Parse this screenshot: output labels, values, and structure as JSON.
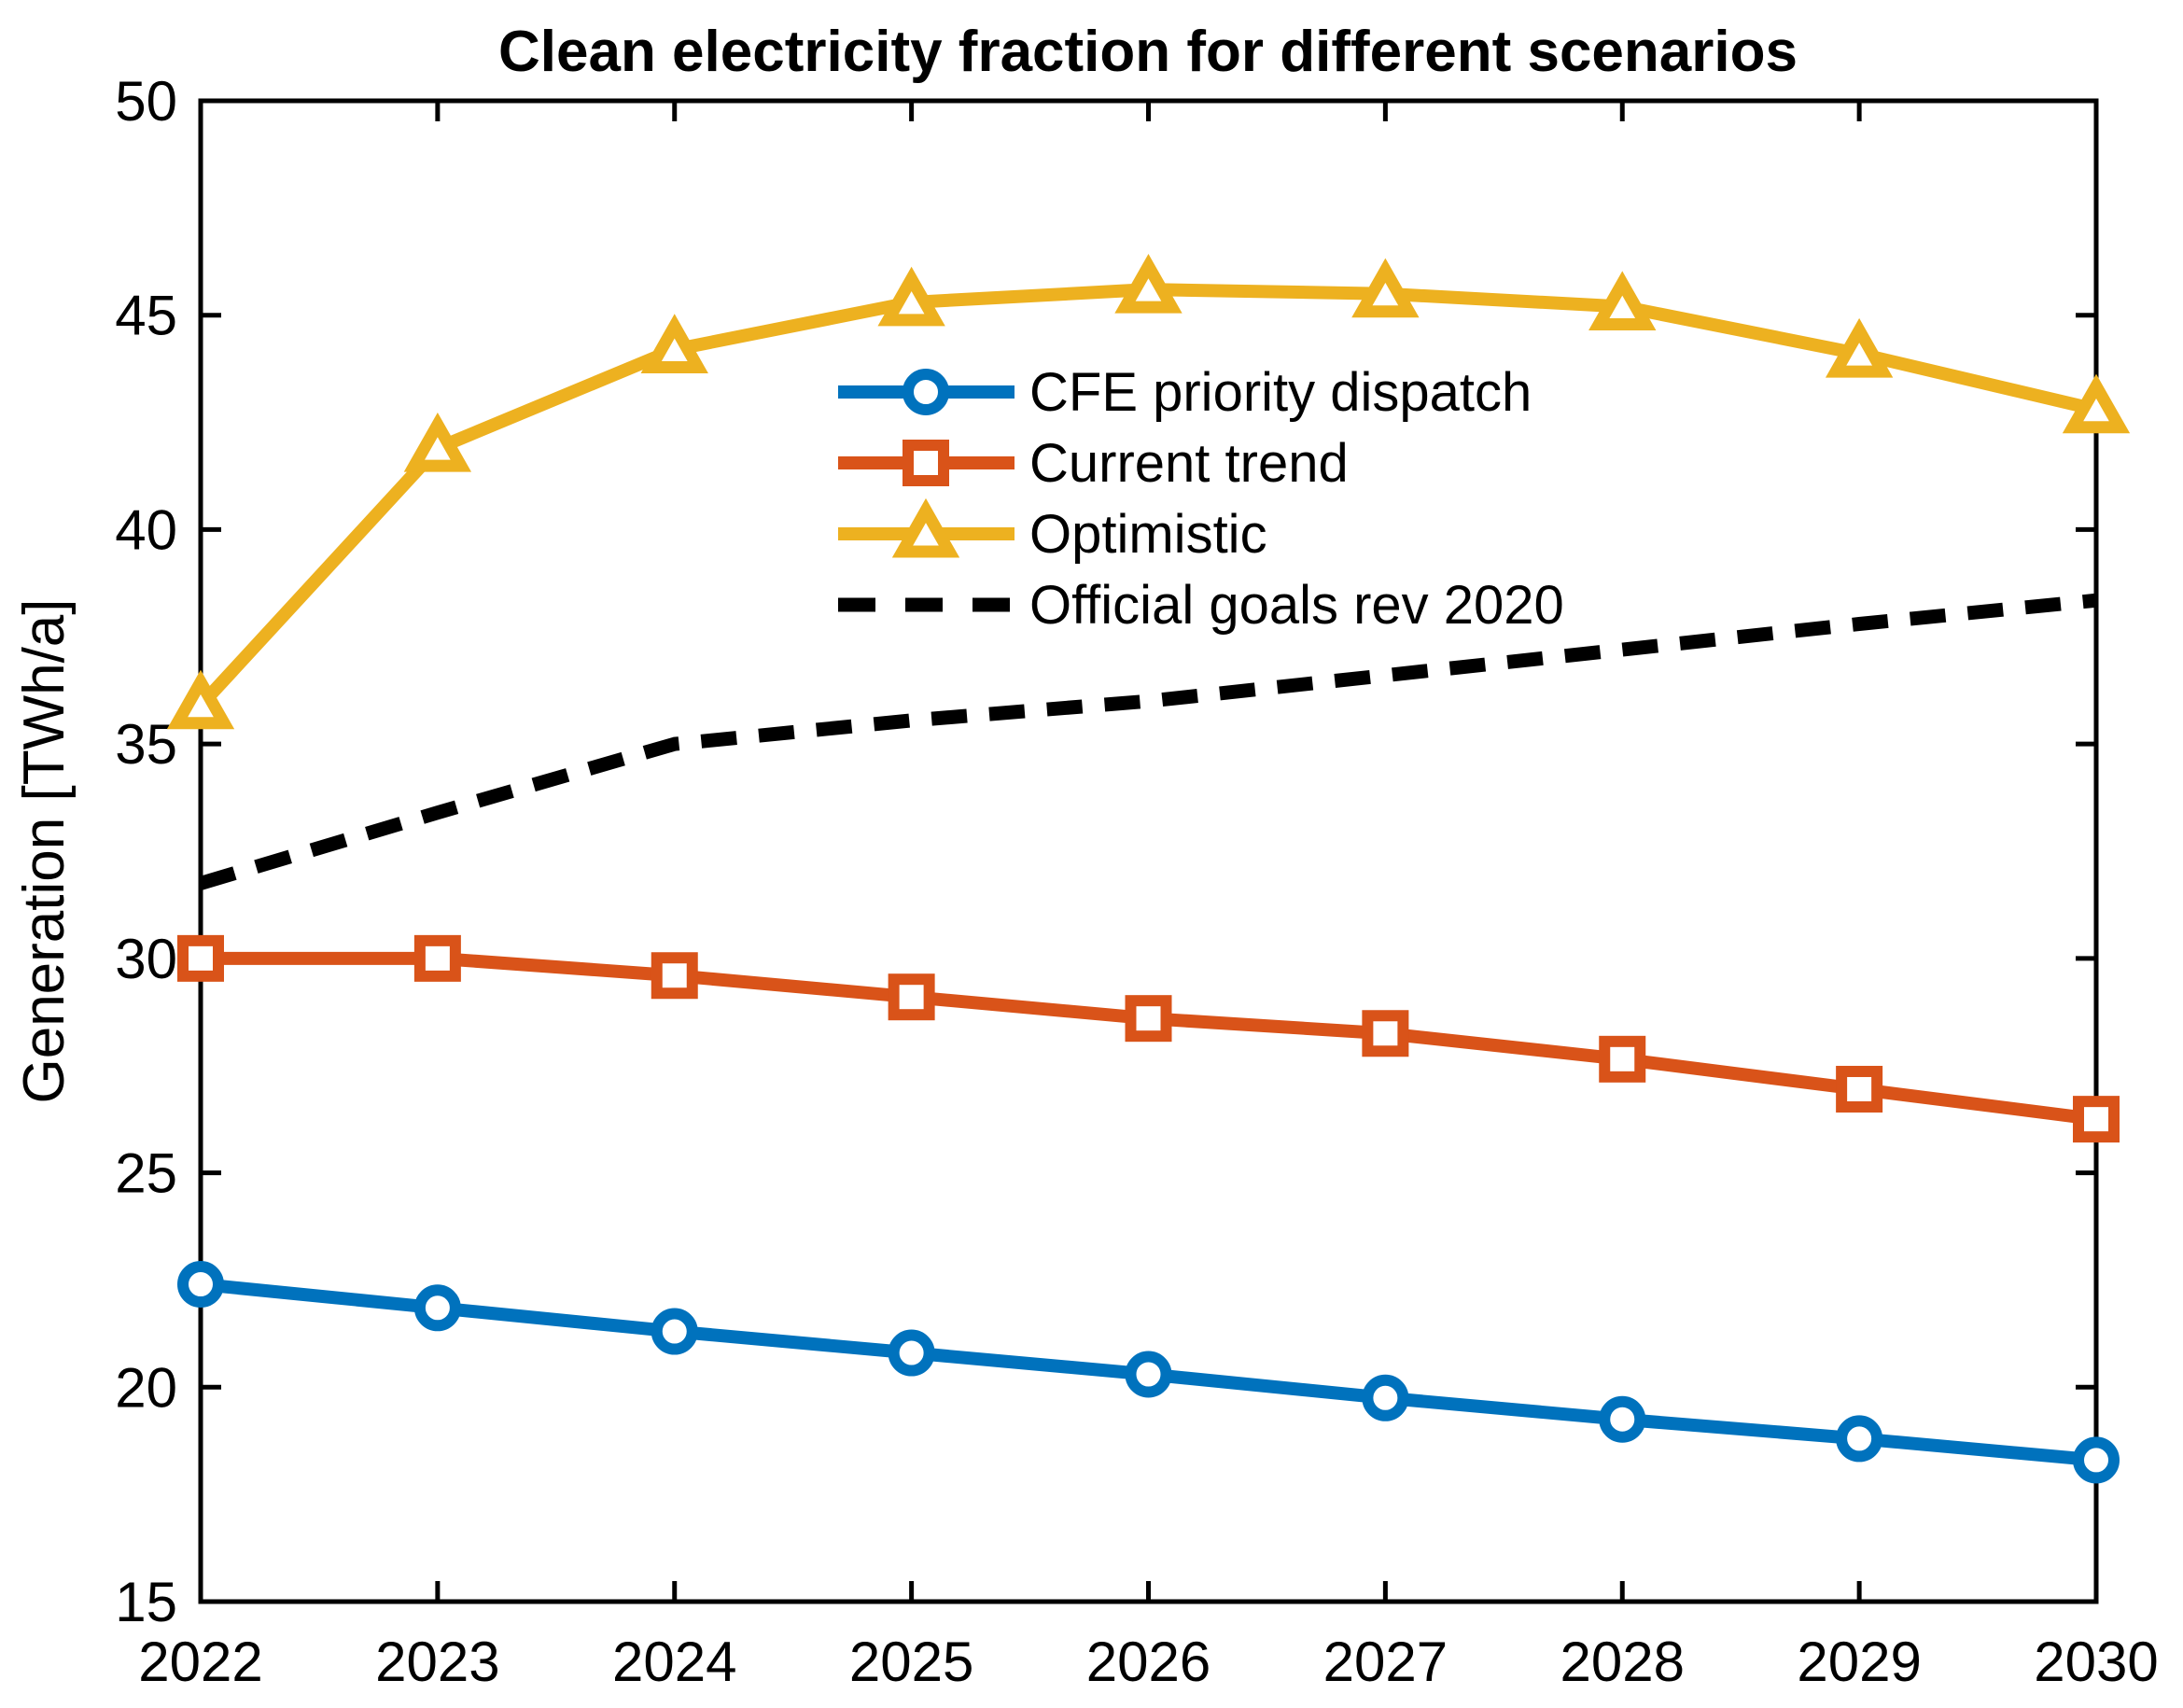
{
  "figure": {
    "background": "#ffffff",
    "axes_color": "#000000"
  },
  "chart_data": {
    "type": "line",
    "title": "Clean electricity fraction for different scenarios",
    "xlabel": "",
    "ylabel": "Generation [TWh/a]",
    "xlim": [
      2022,
      2030
    ],
    "ylim": [
      15,
      50
    ],
    "xticks": [
      2022,
      2023,
      2024,
      2025,
      2026,
      2027,
      2028,
      2029,
      2030
    ],
    "yticks": [
      15,
      20,
      25,
      30,
      35,
      40,
      45,
      50
    ],
    "grid": false,
    "legend": {
      "location": "inside-upper-center",
      "box": false
    },
    "categories": [
      2022,
      2023,
      2024,
      2025,
      2026,
      2027,
      2028,
      2029,
      2030
    ],
    "series": [
      {
        "name": "CFE priority dispatch",
        "color": "#0072BD",
        "marker": "circle",
        "linestyle": "solid",
        "values": [
          22.4,
          21.85,
          21.3,
          20.8,
          20.3,
          19.75,
          19.25,
          18.8,
          18.3
        ]
      },
      {
        "name": "Current trend",
        "color": "#D95319",
        "marker": "square",
        "linestyle": "solid",
        "values": [
          30.0,
          30.0,
          29.6,
          29.1,
          28.6,
          28.25,
          27.65,
          26.95,
          26.25
        ]
      },
      {
        "name": "Optimistic",
        "color": "#EDB120",
        "marker": "triangle",
        "linestyle": "solid",
        "values": [
          35.9,
          41.9,
          44.2,
          45.3,
          45.6,
          45.5,
          45.2,
          44.1,
          42.8
        ]
      },
      {
        "name": "Official goals rev 2020",
        "color": "#000000",
        "marker": "none",
        "linestyle": "dashed",
        "values": [
          31.75,
          33.4,
          35.0,
          35.55,
          36.0,
          36.6,
          37.2,
          37.8,
          38.35
        ]
      }
    ]
  }
}
